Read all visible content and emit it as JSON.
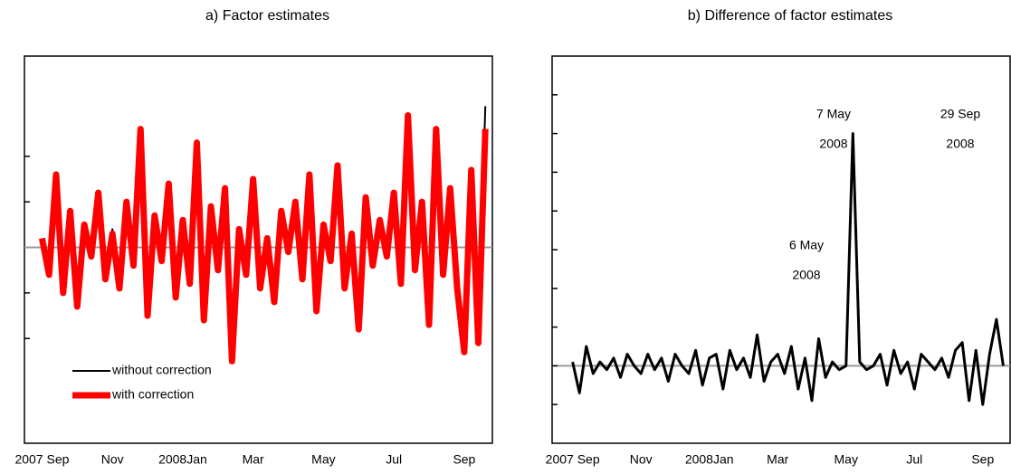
{
  "chart_data": [
    {
      "type": "line",
      "title": "a) Factor estimates",
      "x": [
        0,
        0.2,
        0.4,
        0.6,
        0.8,
        1,
        1.2,
        1.4,
        1.6,
        1.8,
        2,
        2.2,
        2.4,
        2.6,
        2.8,
        3,
        3.2,
        3.4,
        3.6,
        3.8,
        4,
        4.2,
        4.4,
        4.6,
        4.8,
        5,
        5.2,
        5.4,
        5.6,
        5.8,
        6,
        6.2,
        6.4,
        6.6,
        6.8,
        7,
        7.2,
        7.4,
        7.6,
        7.8,
        8,
        8.2,
        8.4,
        8.6,
        8.8,
        9,
        9.2,
        9.4,
        9.6,
        9.8,
        10,
        10.2,
        10.4,
        10.6,
        10.8,
        11,
        11.2,
        11.4,
        11.6,
        11.8,
        12,
        12.2,
        12.4,
        12.6
      ],
      "series": [
        {
          "name": "without correction",
          "color": "#000000",
          "width": 2,
          "values": [
            0.2,
            -0.6,
            1.6,
            -1.0,
            0.8,
            -1.3,
            0.5,
            -0.2,
            1.2,
            -0.7,
            0.4,
            -0.9,
            1.0,
            -0.4,
            2.6,
            -1.5,
            0.7,
            -0.3,
            1.4,
            -1.1,
            0.6,
            -0.8,
            2.3,
            -1.6,
            0.9,
            -0.5,
            1.3,
            -2.5,
            0.4,
            -0.6,
            1.5,
            -0.9,
            0.2,
            -1.2,
            0.8,
            -0.1,
            1.0,
            -0.6,
            1.6,
            -1.4,
            0.5,
            -0.3,
            1.8,
            -0.9,
            0.3,
            -1.8,
            1.1,
            -0.4,
            0.6,
            -0.2,
            1.2,
            -0.8,
            2.9,
            -0.5,
            1.0,
            -1.7,
            2.6,
            -0.6,
            1.3,
            -0.9,
            -2.3,
            1.7,
            -2.0,
            3.1
          ]
        },
        {
          "name": "with correction",
          "color": "#ff0000",
          "width": 7,
          "values": [
            0.2,
            -0.6,
            1.6,
            -1.0,
            0.8,
            -1.3,
            0.5,
            -0.2,
            1.2,
            -0.7,
            0.3,
            -0.9,
            1.0,
            -0.4,
            2.6,
            -1.5,
            0.7,
            -0.3,
            1.4,
            -1.1,
            0.6,
            -0.8,
            2.3,
            -1.6,
            0.9,
            -0.5,
            1.3,
            -2.5,
            0.4,
            -0.6,
            1.5,
            -0.9,
            0.2,
            -1.2,
            0.8,
            -0.1,
            1.0,
            -0.7,
            1.6,
            -1.4,
            0.5,
            -0.3,
            1.8,
            -0.9,
            0.3,
            -1.8,
            1.1,
            -0.4,
            0.6,
            -0.2,
            1.2,
            -0.8,
            2.9,
            -0.5,
            1.0,
            -1.7,
            2.6,
            -0.6,
            1.3,
            -0.9,
            -2.3,
            1.7,
            -2.1,
            2.6
          ]
        }
      ],
      "xlim": [
        -0.5,
        12.8
      ],
      "ylim": [
        -4.3,
        4.2
      ],
      "xticks": [
        {
          "value": 0,
          "label": "2007 Sep"
        },
        {
          "value": 2,
          "label": "Nov"
        },
        {
          "value": 4,
          "label": "2008Jan"
        },
        {
          "value": 6,
          "label": "Mar"
        },
        {
          "value": 8,
          "label": "May"
        },
        {
          "value": 10,
          "label": "Jul"
        },
        {
          "value": 12,
          "label": "Sep"
        }
      ],
      "yticks": [
        -2,
        -1,
        1,
        2
      ],
      "legend": "lower left"
    },
    {
      "type": "line",
      "title": "b) Difference of factor estimates",
      "x": [
        0,
        0.2,
        0.4,
        0.6,
        0.8,
        1,
        1.2,
        1.4,
        1.6,
        1.8,
        2,
        2.2,
        2.4,
        2.6,
        2.8,
        3,
        3.2,
        3.4,
        3.6,
        3.8,
        4,
        4.2,
        4.4,
        4.6,
        4.8,
        5,
        5.2,
        5.4,
        5.6,
        5.8,
        6,
        6.2,
        6.4,
        6.6,
        6.8,
        7,
        7.2,
        7.4,
        7.6,
        7.8,
        8,
        8.2,
        8.4,
        8.6,
        8.8,
        9,
        9.2,
        9.4,
        9.6,
        9.8,
        10,
        10.2,
        10.4,
        10.6,
        10.8,
        11,
        11.2,
        11.4,
        11.6,
        11.8,
        12,
        12.2,
        12.4,
        12.6
      ],
      "series": [
        {
          "color": "#000000",
          "width": 3,
          "values": [
            0.1,
            -0.7,
            0.5,
            -0.2,
            0.1,
            -0.1,
            0.2,
            -0.3,
            0.3,
            0.0,
            -0.2,
            0.3,
            -0.1,
            0.2,
            -0.4,
            0.3,
            0.0,
            -0.2,
            0.4,
            -0.5,
            0.2,
            0.3,
            -0.6,
            0.4,
            -0.1,
            0.2,
            -0.3,
            0.8,
            -0.4,
            0.1,
            0.3,
            -0.2,
            0.5,
            -0.6,
            0.2,
            -0.9,
            0.7,
            -0.3,
            0.1,
            -0.1,
            0.0,
            6.0,
            0.1,
            -0.1,
            0.0,
            0.3,
            -0.5,
            0.4,
            -0.2,
            0.1,
            -0.6,
            0.3,
            0.1,
            -0.1,
            0.2,
            -0.3,
            0.4,
            0.6,
            -0.9,
            0.4,
            -1.0,
            0.3,
            1.2,
            0.0
          ]
        }
      ],
      "xlim": [
        -0.6,
        12.8
      ],
      "ylim": [
        -2,
        8
      ],
      "xticks": [
        {
          "value": 0,
          "label": "2007 Sep"
        },
        {
          "value": 2,
          "label": "Nov"
        },
        {
          "value": 4,
          "label": "2008Jan"
        },
        {
          "value": 6,
          "label": "Mar"
        },
        {
          "value": 8,
          "label": "May"
        },
        {
          "value": 10,
          "label": "Jul"
        },
        {
          "value": 12,
          "label": "Sep"
        }
      ],
      "yticks": [
        -1,
        0,
        1,
        2,
        3,
        4,
        5,
        6,
        7
      ],
      "annotations": [
        [
          "7 May",
          "2008"
        ],
        [
          "6 May",
          "2008"
        ],
        [
          "29 Sep",
          "2008"
        ]
      ]
    }
  ]
}
